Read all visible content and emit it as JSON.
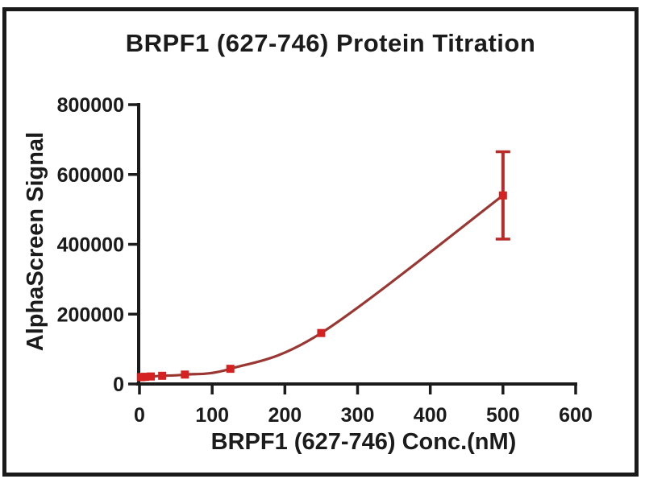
{
  "figure": {
    "background_color": "#ffffff",
    "frame_color": "#1a1a1a",
    "text_color": "#1b1b1b",
    "axis_color": "#1b1b1b"
  },
  "chart_data": {
    "type": "line",
    "title": "BRPF1 (627-746) Protein Titration",
    "xlabel": "BRPF1 (627-746) Conc.(nM)",
    "ylabel": "AlphaScreen Signal",
    "xlim": [
      0,
      600
    ],
    "ylim": [
      0,
      800000
    ],
    "x_ticks": [
      0,
      100,
      200,
      300,
      400,
      500,
      600
    ],
    "y_ticks": [
      0,
      200000,
      400000,
      600000,
      800000
    ],
    "grid": false,
    "legend_position": "none",
    "series": [
      {
        "name": "BRPF1 (627-746)",
        "x": [
          1.95,
          3.9,
          7.8,
          15.6,
          31.25,
          62.5,
          125,
          250,
          500
        ],
        "y": [
          19500,
          20000,
          20500,
          21500,
          23500,
          27000,
          43500,
          146000,
          540000
        ],
        "y_error": [
          1500,
          1500,
          1500,
          1500,
          2000,
          2500,
          4000,
          6000,
          125000
        ],
        "marker": "square",
        "marker_color": "#d32221",
        "line_color": "#9a3732",
        "error_color": "#b82b28"
      }
    ]
  }
}
